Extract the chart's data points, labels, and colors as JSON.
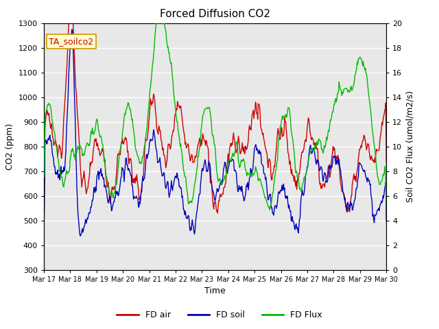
{
  "title": "Forced Diffusion CO2",
  "xlabel": "Time",
  "ylabel_left": "CO2 (ppm)",
  "ylabel_right": "Soil CO2 Flux (umol/m2/s)",
  "ylim_left": [
    300,
    1300
  ],
  "ylim_right": [
    0,
    20
  ],
  "yticks_left": [
    300,
    400,
    500,
    600,
    700,
    800,
    900,
    1000,
    1100,
    1200,
    1300
  ],
  "yticks_right": [
    0,
    2,
    4,
    6,
    8,
    10,
    12,
    14,
    16,
    18,
    20
  ],
  "xtick_labels": [
    "Mar 17",
    "Mar 18",
    "Mar 19",
    "Mar 20",
    "Mar 21",
    "Mar 22",
    "Mar 23",
    "Mar 24",
    "Mar 25",
    "Mar 26",
    "Mar 27",
    "Mar 28",
    "Mar 29",
    "Mar 30"
  ],
  "color_air": "#cc0000",
  "color_soil": "#0000bb",
  "color_flux": "#00bb00",
  "legend_labels": [
    "FD air",
    "FD soil",
    "FD Flux"
  ],
  "annotation_text": "TA_soilco2",
  "annotation_color": "#cc0000",
  "annotation_bg": "#ffffcc",
  "background_color": "#e8e8e8",
  "grid_color": "#ffffff",
  "linewidth": 1.0,
  "title_fontsize": 11,
  "axis_fontsize": 9,
  "tick_fontsize": 8
}
